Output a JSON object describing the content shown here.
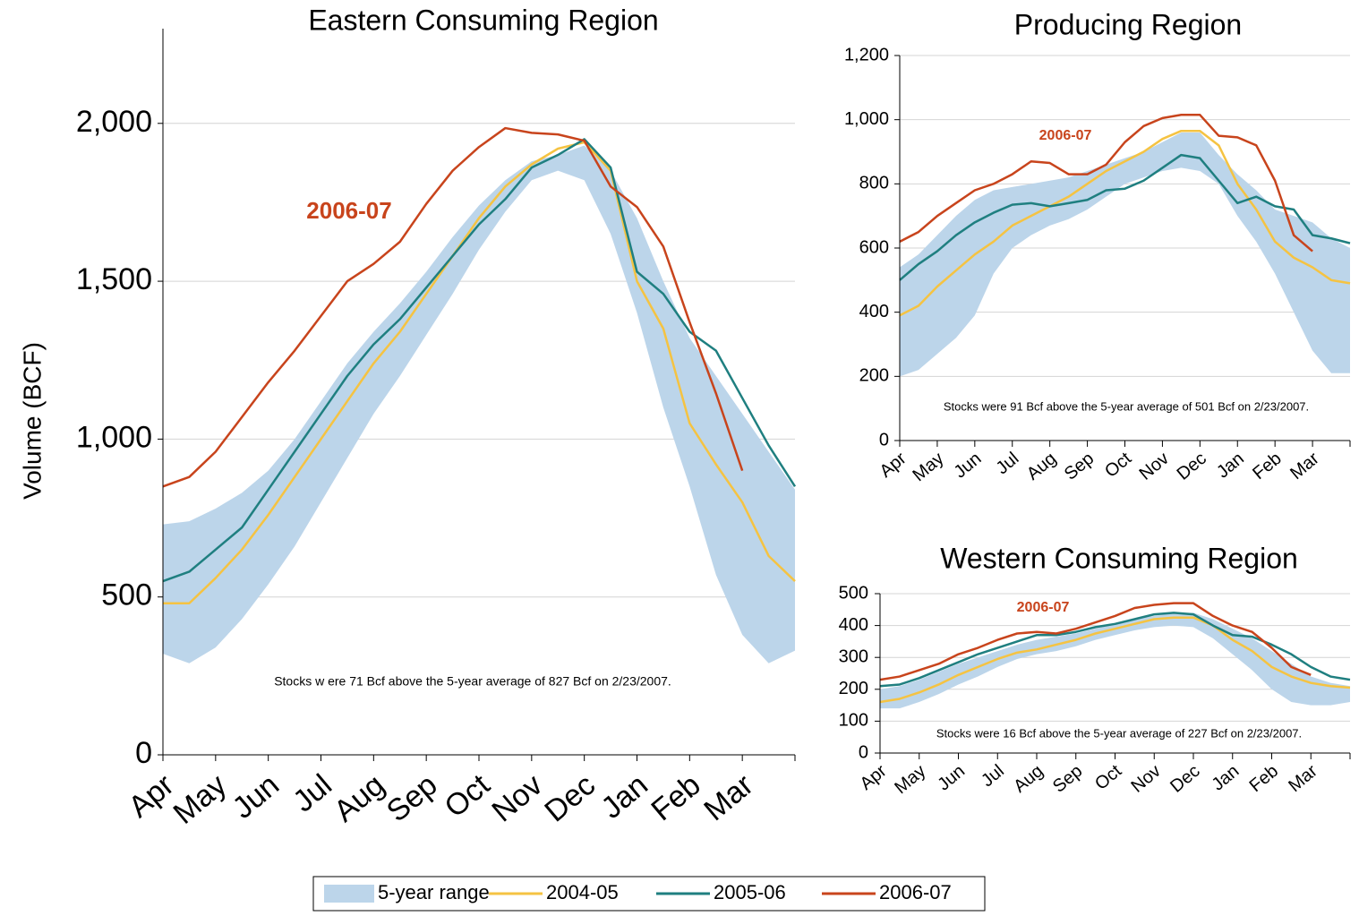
{
  "chart_data": [
    {
      "type": "line",
      "title": "Eastern Consuming Region",
      "ylabel": "Volume (BCF)",
      "categories": [
        "Apr",
        null,
        "May",
        null,
        "Jun",
        null,
        "Jul",
        null,
        "Aug",
        null,
        "Sep",
        null,
        "Oct",
        null,
        "Nov",
        null,
        "Dec",
        null,
        "Jan",
        null,
        "Feb",
        null,
        "Mar",
        null,
        null
      ],
      "series": [
        {
          "name": "5-year range",
          "color": "#bcd5ea",
          "type": "range",
          "high": [
            730,
            740,
            780,
            830,
            900,
            1000,
            1120,
            1240,
            1340,
            1430,
            1530,
            1640,
            1740,
            1820,
            1880,
            1900,
            1930,
            1850,
            1700,
            1500,
            1320,
            1200,
            1080,
            960,
            840
          ],
          "low": [
            320,
            290,
            340,
            430,
            540,
            660,
            800,
            940,
            1080,
            1200,
            1330,
            1460,
            1600,
            1720,
            1820,
            1850,
            1820,
            1650,
            1400,
            1100,
            850,
            570,
            380,
            290,
            330
          ]
        },
        {
          "name": "2004-05",
          "color": "#f5c342",
          "values": [
            480,
            480,
            560,
            650,
            760,
            880,
            1000,
            1120,
            1240,
            1340,
            1460,
            1580,
            1700,
            1800,
            1870,
            1920,
            1940,
            1850,
            1500,
            1350,
            1050,
            920,
            800,
            630,
            550
          ]
        },
        {
          "name": "2005-06",
          "color": "#1f7f80",
          "values": [
            550,
            580,
            650,
            720,
            840,
            960,
            1080,
            1200,
            1300,
            1380,
            1480,
            1580,
            1680,
            1760,
            1860,
            1900,
            1950,
            1860,
            1530,
            1460,
            1340,
            1280,
            1130,
            980,
            850
          ]
        },
        {
          "name": "2006-07",
          "color": "#c8441c",
          "values": [
            850,
            880,
            960,
            1070,
            1180,
            1280,
            1390,
            1500,
            1555,
            1625,
            1745,
            1850,
            1925,
            1985,
            1970,
            1965,
            1945,
            1800,
            1735,
            1610,
            1370,
            1145,
            900,
            null,
            null
          ]
        }
      ],
      "ylim": [
        0,
        2300
      ],
      "yticks": [
        0,
        500,
        {
          "value": 1000,
          "label": "1,000"
        },
        {
          "value": 1500,
          "label": "1,500"
        },
        {
          "value": 2000,
          "label": "2,000"
        }
      ],
      "grid": true,
      "annotations": [
        "2006-07",
        "Stocks w ere 71 Bcf above the 5-year average of 827 Bcf on 2/23/2007."
      ]
    },
    {
      "type": "line",
      "title": "Producing Region",
      "categories": [
        "Apr",
        null,
        "May",
        null,
        "Jun",
        null,
        "Jul",
        null,
        "Aug",
        null,
        "Sep",
        null,
        "Oct",
        null,
        "Nov",
        null,
        "Dec",
        null,
        "Jan",
        null,
        "Feb",
        null,
        "Mar",
        null,
        null
      ],
      "series": [
        {
          "name": "5-year range",
          "color": "#bcd5ea",
          "type": "range",
          "high": [
            540,
            580,
            640,
            700,
            750,
            780,
            790,
            800,
            810,
            820,
            840,
            860,
            880,
            900,
            930,
            960,
            960,
            890,
            830,
            780,
            720,
            700,
            680,
            630,
            600
          ],
          "low": [
            200,
            220,
            270,
            320,
            390,
            520,
            600,
            640,
            670,
            690,
            720,
            760,
            800,
            820,
            840,
            850,
            840,
            800,
            700,
            620,
            520,
            400,
            280,
            210,
            210
          ]
        },
        {
          "name": "2004-05",
          "color": "#f5c342",
          "values": [
            390,
            420,
            480,
            530,
            580,
            620,
            670,
            700,
            730,
            760,
            800,
            840,
            870,
            900,
            940,
            965,
            965,
            920,
            800,
            720,
            620,
            570,
            540,
            500,
            490
          ]
        },
        {
          "name": "2005-06",
          "color": "#1f7f80",
          "values": [
            500,
            550,
            590,
            640,
            680,
            710,
            735,
            740,
            730,
            740,
            750,
            780,
            785,
            810,
            850,
            890,
            880,
            810,
            740,
            760,
            730,
            720,
            640,
            630,
            615
          ]
        },
        {
          "name": "2006-07",
          "color": "#c8441c",
          "values": [
            620,
            650,
            700,
            740,
            780,
            800,
            830,
            870,
            865,
            830,
            830,
            860,
            930,
            980,
            1005,
            1015,
            1015,
            950,
            945,
            920,
            810,
            640,
            590,
            null,
            null
          ]
        }
      ],
      "ylim": [
        0,
        1200
      ],
      "yticks": [
        0,
        200,
        400,
        600,
        800,
        {
          "value": 1000,
          "label": "1,000"
        },
        {
          "value": 1200,
          "label": "1,200"
        }
      ],
      "grid": true,
      "annotations": [
        "2006-07",
        "Stocks were 91 Bcf above the 5-year average of 501 Bcf on 2/23/2007."
      ]
    },
    {
      "type": "line",
      "title": "Western Consuming Region",
      "categories": [
        "Apr",
        null,
        "May",
        null,
        "Jun",
        null,
        "Jul",
        null,
        "Aug",
        null,
        "Sep",
        null,
        "Oct",
        null,
        "Nov",
        null,
        "Dec",
        null,
        "Jan",
        null,
        "Feb",
        null,
        "Mar",
        null,
        null
      ],
      "series": [
        {
          "name": "5-year range",
          "color": "#bcd5ea",
          "type": "range",
          "high": [
            200,
            210,
            230,
            255,
            280,
            300,
            320,
            340,
            355,
            365,
            375,
            390,
            405,
            420,
            430,
            440,
            440,
            420,
            390,
            360,
            320,
            280,
            240,
            220,
            210
          ],
          "low": [
            140,
            140,
            160,
            185,
            215,
            240,
            270,
            295,
            310,
            320,
            335,
            355,
            370,
            385,
            395,
            400,
            395,
            360,
            310,
            260,
            200,
            160,
            150,
            150,
            160
          ]
        },
        {
          "name": "2004-05",
          "color": "#f5c342",
          "values": [
            160,
            170,
            190,
            215,
            245,
            270,
            295,
            315,
            325,
            340,
            355,
            375,
            390,
            405,
            420,
            425,
            425,
            400,
            355,
            320,
            270,
            240,
            220,
            210,
            205
          ]
        },
        {
          "name": "2005-06",
          "color": "#1f7f80",
          "values": [
            210,
            215,
            235,
            260,
            285,
            310,
            330,
            350,
            370,
            370,
            380,
            395,
            405,
            420,
            435,
            440,
            435,
            400,
            370,
            365,
            340,
            310,
            270,
            240,
            230
          ]
        },
        {
          "name": "2006-07",
          "color": "#c8441c",
          "values": [
            230,
            240,
            260,
            280,
            310,
            330,
            355,
            375,
            380,
            375,
            390,
            410,
            430,
            455,
            465,
            470,
            470,
            430,
            400,
            380,
            330,
            270,
            245,
            null,
            null
          ]
        }
      ],
      "ylim": [
        0,
        500
      ],
      "yticks": [
        0,
        100,
        200,
        300,
        400,
        500
      ],
      "grid": true,
      "annotations": [
        "2006-07",
        "Stocks were 16 Bcf above the 5-year average of 227 Bcf on 2/23/2007."
      ]
    }
  ]
}
